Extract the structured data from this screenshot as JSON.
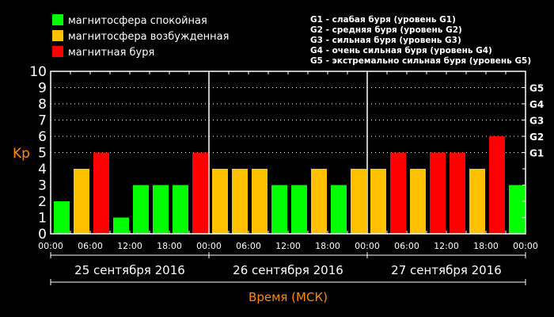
{
  "legend": [
    {
      "label": "магнитосфера спокойная",
      "color": "#00ff00"
    },
    {
      "label": "магнитосфера возбужденная",
      "color": "#ffc000"
    },
    {
      "label": "магнитная буря",
      "color": "#ff0000"
    }
  ],
  "storm_scale": [
    "G1 - слабая буря (уровень G1)",
    "G2 - средняя буря (уровень G2)",
    "G3 - сильная буря (уровень G3)",
    "G4 - очень сильная буря (уровень G4)",
    "G5 - экстремально сильная буря (уровень G5)"
  ],
  "chart_data": {
    "type": "bar",
    "ylabel": "Kp",
    "xlabel": "Время (МСК)",
    "ylim": [
      0,
      10
    ],
    "yticks": [
      "0",
      "1",
      "2",
      "3",
      "4",
      "5",
      "6",
      "7",
      "8",
      "9",
      "10"
    ],
    "right_ticks": [
      {
        "label": "G1",
        "value": 5
      },
      {
        "label": "G2",
        "value": 6
      },
      {
        "label": "G3",
        "value": 7
      },
      {
        "label": "G4",
        "value": 8
      },
      {
        "label": "G5",
        "value": 9
      }
    ],
    "grid": "dotted at 5-9",
    "xtick_labels": [
      "00:00",
      "06:00",
      "12:00",
      "18:00",
      "00:00",
      "06:00",
      "12:00",
      "18:00",
      "00:00",
      "06:00",
      "12:00",
      "18:00",
      "00:00"
    ],
    "days": [
      "25 сентября 2016",
      "26 сентября 2016",
      "27 сентября 2016"
    ],
    "interval_hours": 3,
    "values": [
      2,
      4,
      5,
      1,
      3,
      3,
      3,
      5,
      4,
      4,
      4,
      3,
      3,
      4,
      3,
      4,
      4,
      5,
      4,
      5,
      5,
      4,
      6,
      3
    ],
    "colors": {
      "quiet": "#00ff00",
      "active": "#ffc000",
      "storm": "#ff0000"
    },
    "label_color": "#ff8c00"
  }
}
